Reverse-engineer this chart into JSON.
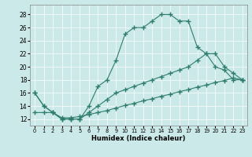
{
  "xlabel": "Humidex (Indice chaleur)",
  "xlim": [
    -0.5,
    23.5
  ],
  "ylim": [
    11,
    29.5
  ],
  "yticks": [
    12,
    14,
    16,
    18,
    20,
    22,
    24,
    26,
    28
  ],
  "xticks": [
    0,
    1,
    2,
    3,
    4,
    5,
    6,
    7,
    8,
    9,
    10,
    11,
    12,
    13,
    14,
    15,
    16,
    17,
    18,
    19,
    20,
    21,
    22,
    23
  ],
  "bg_color": "#cce9e9",
  "line_color": "#2e7d6e",
  "line1_x": [
    0,
    1,
    2,
    3,
    4,
    5,
    6,
    7,
    8,
    9,
    10,
    11,
    12,
    13,
    14,
    15,
    16,
    17,
    18,
    19,
    20,
    21,
    22,
    23
  ],
  "line1_y": [
    16,
    14,
    13,
    12,
    12,
    12,
    14,
    17,
    18,
    21,
    25,
    26,
    26,
    27,
    28,
    28,
    27,
    27,
    23,
    22,
    20,
    19.5,
    18,
    18
  ],
  "line2_x": [
    0,
    1,
    2,
    3,
    4,
    5,
    6,
    7,
    8,
    9,
    10,
    11,
    12,
    13,
    14,
    15,
    16,
    17,
    18,
    19,
    20,
    21,
    22,
    23
  ],
  "line2_y": [
    16,
    14,
    13,
    12,
    12,
    12,
    13,
    14,
    15,
    16,
    16.5,
    17,
    17.5,
    18,
    18.5,
    19,
    19.5,
    20,
    21,
    22,
    22,
    20,
    19,
    18
  ],
  "line3_x": [
    0,
    1,
    2,
    3,
    4,
    5,
    6,
    7,
    8,
    9,
    10,
    11,
    12,
    13,
    14,
    15,
    16,
    17,
    18,
    19,
    20,
    21,
    22,
    23
  ],
  "line3_y": [
    13,
    13,
    13,
    12.2,
    12.2,
    12.4,
    12.7,
    13.0,
    13.3,
    13.7,
    14.1,
    14.4,
    14.8,
    15.1,
    15.5,
    15.8,
    16.2,
    16.5,
    16.9,
    17.2,
    17.6,
    17.9,
    18.3,
    18.0
  ]
}
